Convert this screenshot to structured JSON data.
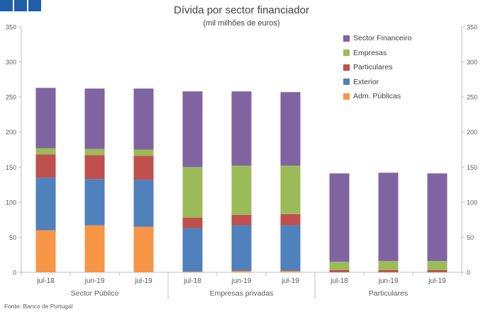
{
  "chart_data": {
    "type": "bar",
    "stacked": true,
    "title": "Dívida por sector financiador",
    "subtitle": "(mil milhões de euros)",
    "ylim": [
      0,
      350
    ],
    "yticks": [
      0,
      50,
      100,
      150,
      200,
      250,
      300,
      350
    ],
    "grid": false,
    "legend_position": "top-right",
    "categories": [
      "jul-18",
      "jun-19",
      "jul-19",
      "jul-18",
      "jun-19",
      "jul-19",
      "jul-18",
      "jun-19",
      "jul-19"
    ],
    "groups": [
      {
        "label": "Sector Público",
        "size": 3
      },
      {
        "label": "Empresas privadas",
        "size": 3
      },
      {
        "label": "Particulares",
        "size": 3
      }
    ],
    "series": [
      {
        "name": "Adm. Públicas",
        "color": "#f79646",
        "values": [
          60,
          67,
          65,
          1,
          2,
          2,
          0,
          0,
          0
        ]
      },
      {
        "name": "Exterior",
        "color": "#4f81bd",
        "values": [
          75,
          66,
          67,
          62,
          65,
          65,
          0,
          0,
          0
        ]
      },
      {
        "name": "Particulares",
        "color": "#c0504d",
        "values": [
          33,
          34,
          34,
          15,
          15,
          16,
          3,
          3,
          3
        ]
      },
      {
        "name": "Empresas",
        "color": "#9bbb59",
        "values": [
          9,
          9,
          9,
          72,
          70,
          69,
          12,
          13,
          13
        ]
      },
      {
        "name": "Sector Financeiro",
        "color": "#8064a2",
        "values": [
          86,
          86,
          87,
          108,
          106,
          105,
          126,
          126,
          125
        ]
      }
    ]
  },
  "source": "Fonte: Banco de Portugal"
}
